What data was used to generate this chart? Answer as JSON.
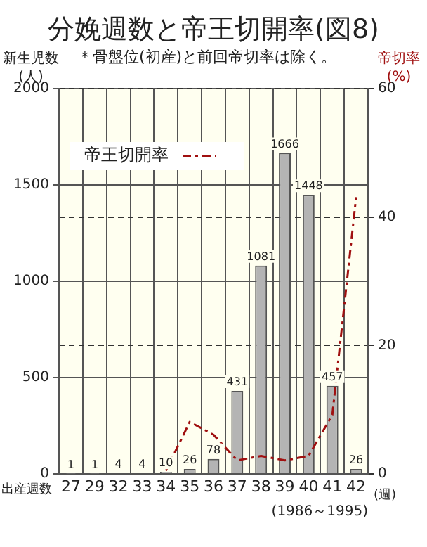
{
  "chart_data": {
    "type": "bar",
    "title": "分娩週数と帝王切開率(図8)",
    "subtitle": "＊骨盤位(初産)と前回帝切率は除く。",
    "xlabel": "出産週数",
    "ylabel": "新生児数\n(人)",
    "y2label": "帝切率\n(%)",
    "categories": [
      "27",
      "29",
      "32",
      "33",
      "34",
      "35",
      "36",
      "37",
      "38",
      "39",
      "40",
      "41",
      "42"
    ],
    "series": [
      {
        "color": "#b4b4b4",
        "values": [
          1,
          1,
          4,
          4,
          10,
          26,
          78,
          431,
          1081,
          1666,
          1448,
          457,
          26
        ],
        "value_labels": [
          "1",
          "1",
          "4",
          "4",
          "10",
          "26",
          "78",
          "431",
          "1081",
          "1666",
          "1448",
          "457",
          "26"
        ]
      },
      {
        "name": "帝王切開率",
        "type": "line",
        "axis": "y2",
        "color": "#a01010",
        "line_style": "dashdot",
        "marker": "none",
        "values": [
          null,
          null,
          null,
          null,
          0.5,
          8.1,
          6.1,
          2.1,
          2.8,
          2.1,
          2.8,
          9.2,
          43.1
        ]
      }
    ],
    "ylim": [
      0,
      2000
    ],
    "yticks": [
      0,
      500,
      1000,
      1500,
      2000
    ],
    "y2lim": [
      0,
      60
    ],
    "y2ticks": [
      0,
      20,
      40,
      60
    ],
    "grid": true,
    "legend": "top left",
    "annotations": [
      "(週)",
      "(1986～1995)"
    ]
  }
}
